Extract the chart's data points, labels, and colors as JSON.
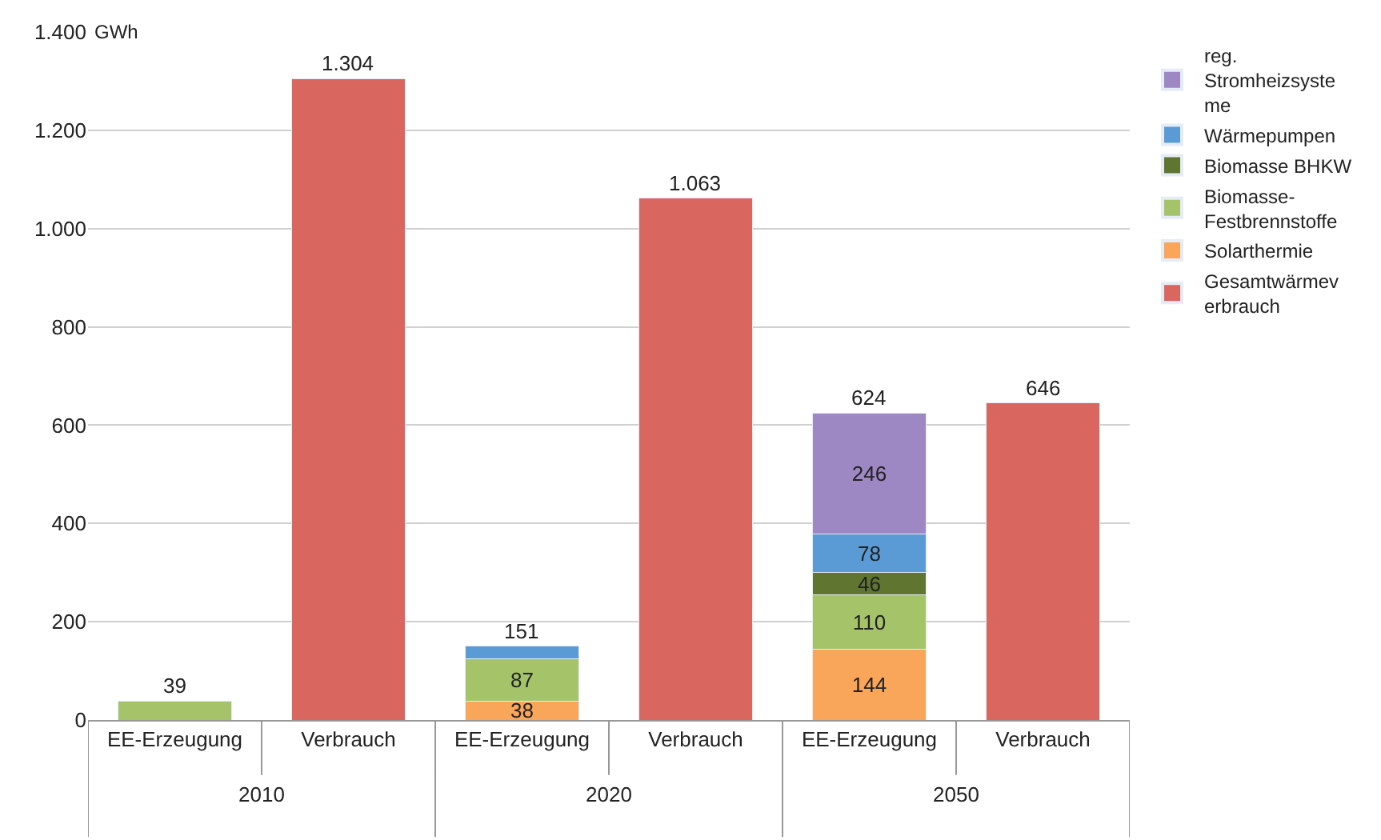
{
  "chart_data": {
    "type": "bar",
    "stacked": true,
    "ylabel": "GWh",
    "categories": [
      "EE-Erzeugung",
      "Verbrauch",
      "EE-Erzeugung",
      "Verbrauch",
      "EE-Erzeugung",
      "Verbrauch"
    ],
    "annotations": [
      "2010",
      "2020",
      "2050"
    ],
    "series": [
      {
        "name": "Gesamtwärmev\nerbrauch",
        "color": "#d9665f",
        "values": [
          null,
          1304,
          null,
          1063,
          null,
          646
        ],
        "value_labels": [
          null,
          "1.304",
          null,
          "1.063",
          null,
          "646"
        ]
      },
      {
        "name": "Solarthermie",
        "color": "#f9a65a",
        "values": [
          null,
          null,
          38,
          null,
          144,
          null
        ],
        "value_labels": [
          null,
          null,
          "38",
          null,
          "144",
          null
        ]
      },
      {
        "name": "Biomasse-\nFestbrennstoffe",
        "color": "#a5c46a",
        "values": [
          39,
          null,
          87,
          null,
          110,
          null
        ],
        "value_labels": [
          null,
          null,
          "87",
          null,
          "110",
          null
        ]
      },
      {
        "name": "Biomasse BHKW",
        "color": "#5f7530",
        "values": [
          null,
          null,
          null,
          null,
          46,
          null
        ],
        "value_labels": [
          null,
          null,
          null,
          null,
          "46",
          null
        ]
      },
      {
        "name": "Wärmepumpen",
        "color": "#5b9bd5",
        "values": [
          null,
          null,
          26,
          null,
          78,
          null
        ],
        "value_labels": [
          null,
          null,
          null,
          null,
          "78",
          null
        ]
      },
      {
        "name": "reg.\nStromheizsyste\nme",
        "color": "#9e88c4",
        "values": [
          null,
          null,
          null,
          null,
          246,
          null
        ],
        "value_labels": [
          null,
          null,
          null,
          null,
          "246",
          null
        ]
      }
    ],
    "totals": [
      "39",
      null,
      "151",
      null,
      "624",
      null
    ],
    "ylim": [
      0,
      1400
    ],
    "yticks": [
      0,
      {
        "value": 200,
        "label": "200"
      },
      {
        "value": 400,
        "label": "400"
      },
      {
        "value": 600,
        "label": "600"
      },
      {
        "value": 800,
        "label": "800"
      },
      {
        "value": 1000,
        "label": "1.000"
      },
      {
        "value": 1200,
        "label": "1.200"
      },
      {
        "value": 1400,
        "label": "1.400"
      }
    ],
    "grid": "y",
    "legend": "right"
  }
}
